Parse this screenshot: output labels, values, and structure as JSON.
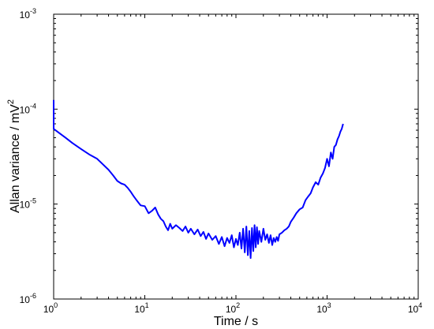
{
  "chart_data": {
    "type": "line",
    "title": "",
    "xlabel": "Time / s",
    "ylabel": {
      "text": "Allan variance / mV",
      "superscript": "2"
    },
    "xscale": "log",
    "yscale": "log",
    "xlim": [
      1,
      10000
    ],
    "ylim": [
      1e-06,
      0.001
    ],
    "grid": false,
    "x_ticks": [
      {
        "value": 1,
        "base": "10",
        "exp": "0"
      },
      {
        "value": 10,
        "base": "10",
        "exp": "1"
      },
      {
        "value": 100,
        "base": "10",
        "exp": "2"
      },
      {
        "value": 1000,
        "base": "10",
        "exp": "3"
      },
      {
        "value": 10000,
        "base": "10",
        "exp": "4"
      }
    ],
    "y_ticks": [
      {
        "value": 1e-06,
        "base": "10",
        "exp": "-6"
      },
      {
        "value": 1e-05,
        "base": "10",
        "exp": "-5"
      },
      {
        "value": 0.0001,
        "base": "10",
        "exp": "-4"
      },
      {
        "value": 0.001,
        "base": "10",
        "exp": "-3"
      }
    ],
    "series": [
      {
        "color": "#0000ff",
        "x": [
          1.0,
          1.0,
          1.15,
          1.35,
          1.6,
          2.0,
          2.5,
          3.0,
          3.5,
          4.0,
          4.5,
          5.0,
          5.5,
          6.0,
          6.5,
          7.0,
          7.5,
          8.0,
          8.5,
          9.0,
          10.0,
          11.0,
          12.0,
          13.0,
          14.0,
          15.0,
          16.0,
          17.0,
          18.0,
          19.0,
          20.0,
          22.0,
          24.0,
          26.0,
          28.0,
          30.0,
          32.0,
          35.0,
          38.0,
          41.0,
          44.0,
          47.0,
          50.0,
          55.0,
          60.0,
          65.0,
          70.0,
          75.0,
          80.0,
          85.0,
          90.0,
          95.0,
          100.0,
          105.0,
          110.0,
          115.0,
          120.0,
          125.0,
          130.0,
          135.0,
          140.0,
          145.0,
          150.0,
          155.0,
          160.0,
          165.0,
          170.0,
          175.0,
          180.0,
          190.0,
          200.0,
          210.0,
          220.0,
          230.0,
          240.0,
          250.0,
          260.0,
          270.0,
          280.0,
          290.0,
          300.0,
          320.0,
          340.0,
          360.0,
          380.0,
          400.0,
          430.0,
          460.0,
          500.0,
          540.0,
          580.0,
          620.0,
          660.0,
          700.0,
          750.0,
          800.0,
          850.0,
          900.0,
          950.0,
          1000.0,
          1050.0,
          1100.0,
          1150.0,
          1200.0,
          1250.0,
          1300.0,
          1350.0,
          1400.0,
          1450.0,
          1500.0
        ],
        "y": [
          0.000125,
          6.2e-05,
          5.6e-05,
          5e-05,
          4.4e-05,
          3.8e-05,
          3.3e-05,
          3e-05,
          2.6e-05,
          2.3e-05,
          2e-05,
          1.75e-05,
          1.65e-05,
          1.6e-05,
          1.48e-05,
          1.35e-05,
          1.22e-05,
          1.12e-05,
          1.04e-05,
          9.7e-06,
          9.5e-06,
          8e-06,
          8.5e-06,
          9.2e-06,
          7.8e-06,
          7e-06,
          6.6e-06,
          5.8e-06,
          5.3e-06,
          6.2e-06,
          5.5e-06,
          6e-06,
          5.6e-06,
          5.2e-06,
          5.8e-06,
          5e-06,
          5.5e-06,
          4.8e-06,
          5.4e-06,
          4.6e-06,
          5.1e-06,
          4.3e-06,
          4.9e-06,
          4.2e-06,
          4.6e-06,
          3.8e-06,
          4.5e-06,
          3.6e-06,
          4.4e-06,
          3.9e-06,
          4.7e-06,
          3.5e-06,
          4.3e-06,
          3.7e-06,
          5e-06,
          3.4e-06,
          5.5e-06,
          3.1e-06,
          5.8e-06,
          2.9e-06,
          5.2e-06,
          2.7e-06,
          5.6e-06,
          3.2e-06,
          6e-06,
          3.5e-06,
          5.7e-06,
          3.8e-06,
          5.2e-06,
          4e-06,
          5.5e-06,
          4.2e-06,
          4.8e-06,
          3.9e-06,
          4.7e-06,
          3.7e-06,
          4.4e-06,
          4e-06,
          4.5e-06,
          4.1e-06,
          4.8e-06,
          5e-06,
          5.3e-06,
          5.5e-06,
          5.8e-06,
          6.5e-06,
          7.2e-06,
          8e-06,
          8.8e-06,
          9.2e-06,
          1.1e-05,
          1.2e-05,
          1.3e-05,
          1.5e-05,
          1.7e-05,
          1.6e-05,
          1.9e-05,
          2.1e-05,
          2.4e-05,
          3e-05,
          2.5e-05,
          3.5e-05,
          3e-05,
          4e-05,
          4.2e-05,
          4.8e-05,
          5.2e-05,
          5.8e-05,
          6.2e-05,
          7e-05
        ]
      }
    ]
  }
}
